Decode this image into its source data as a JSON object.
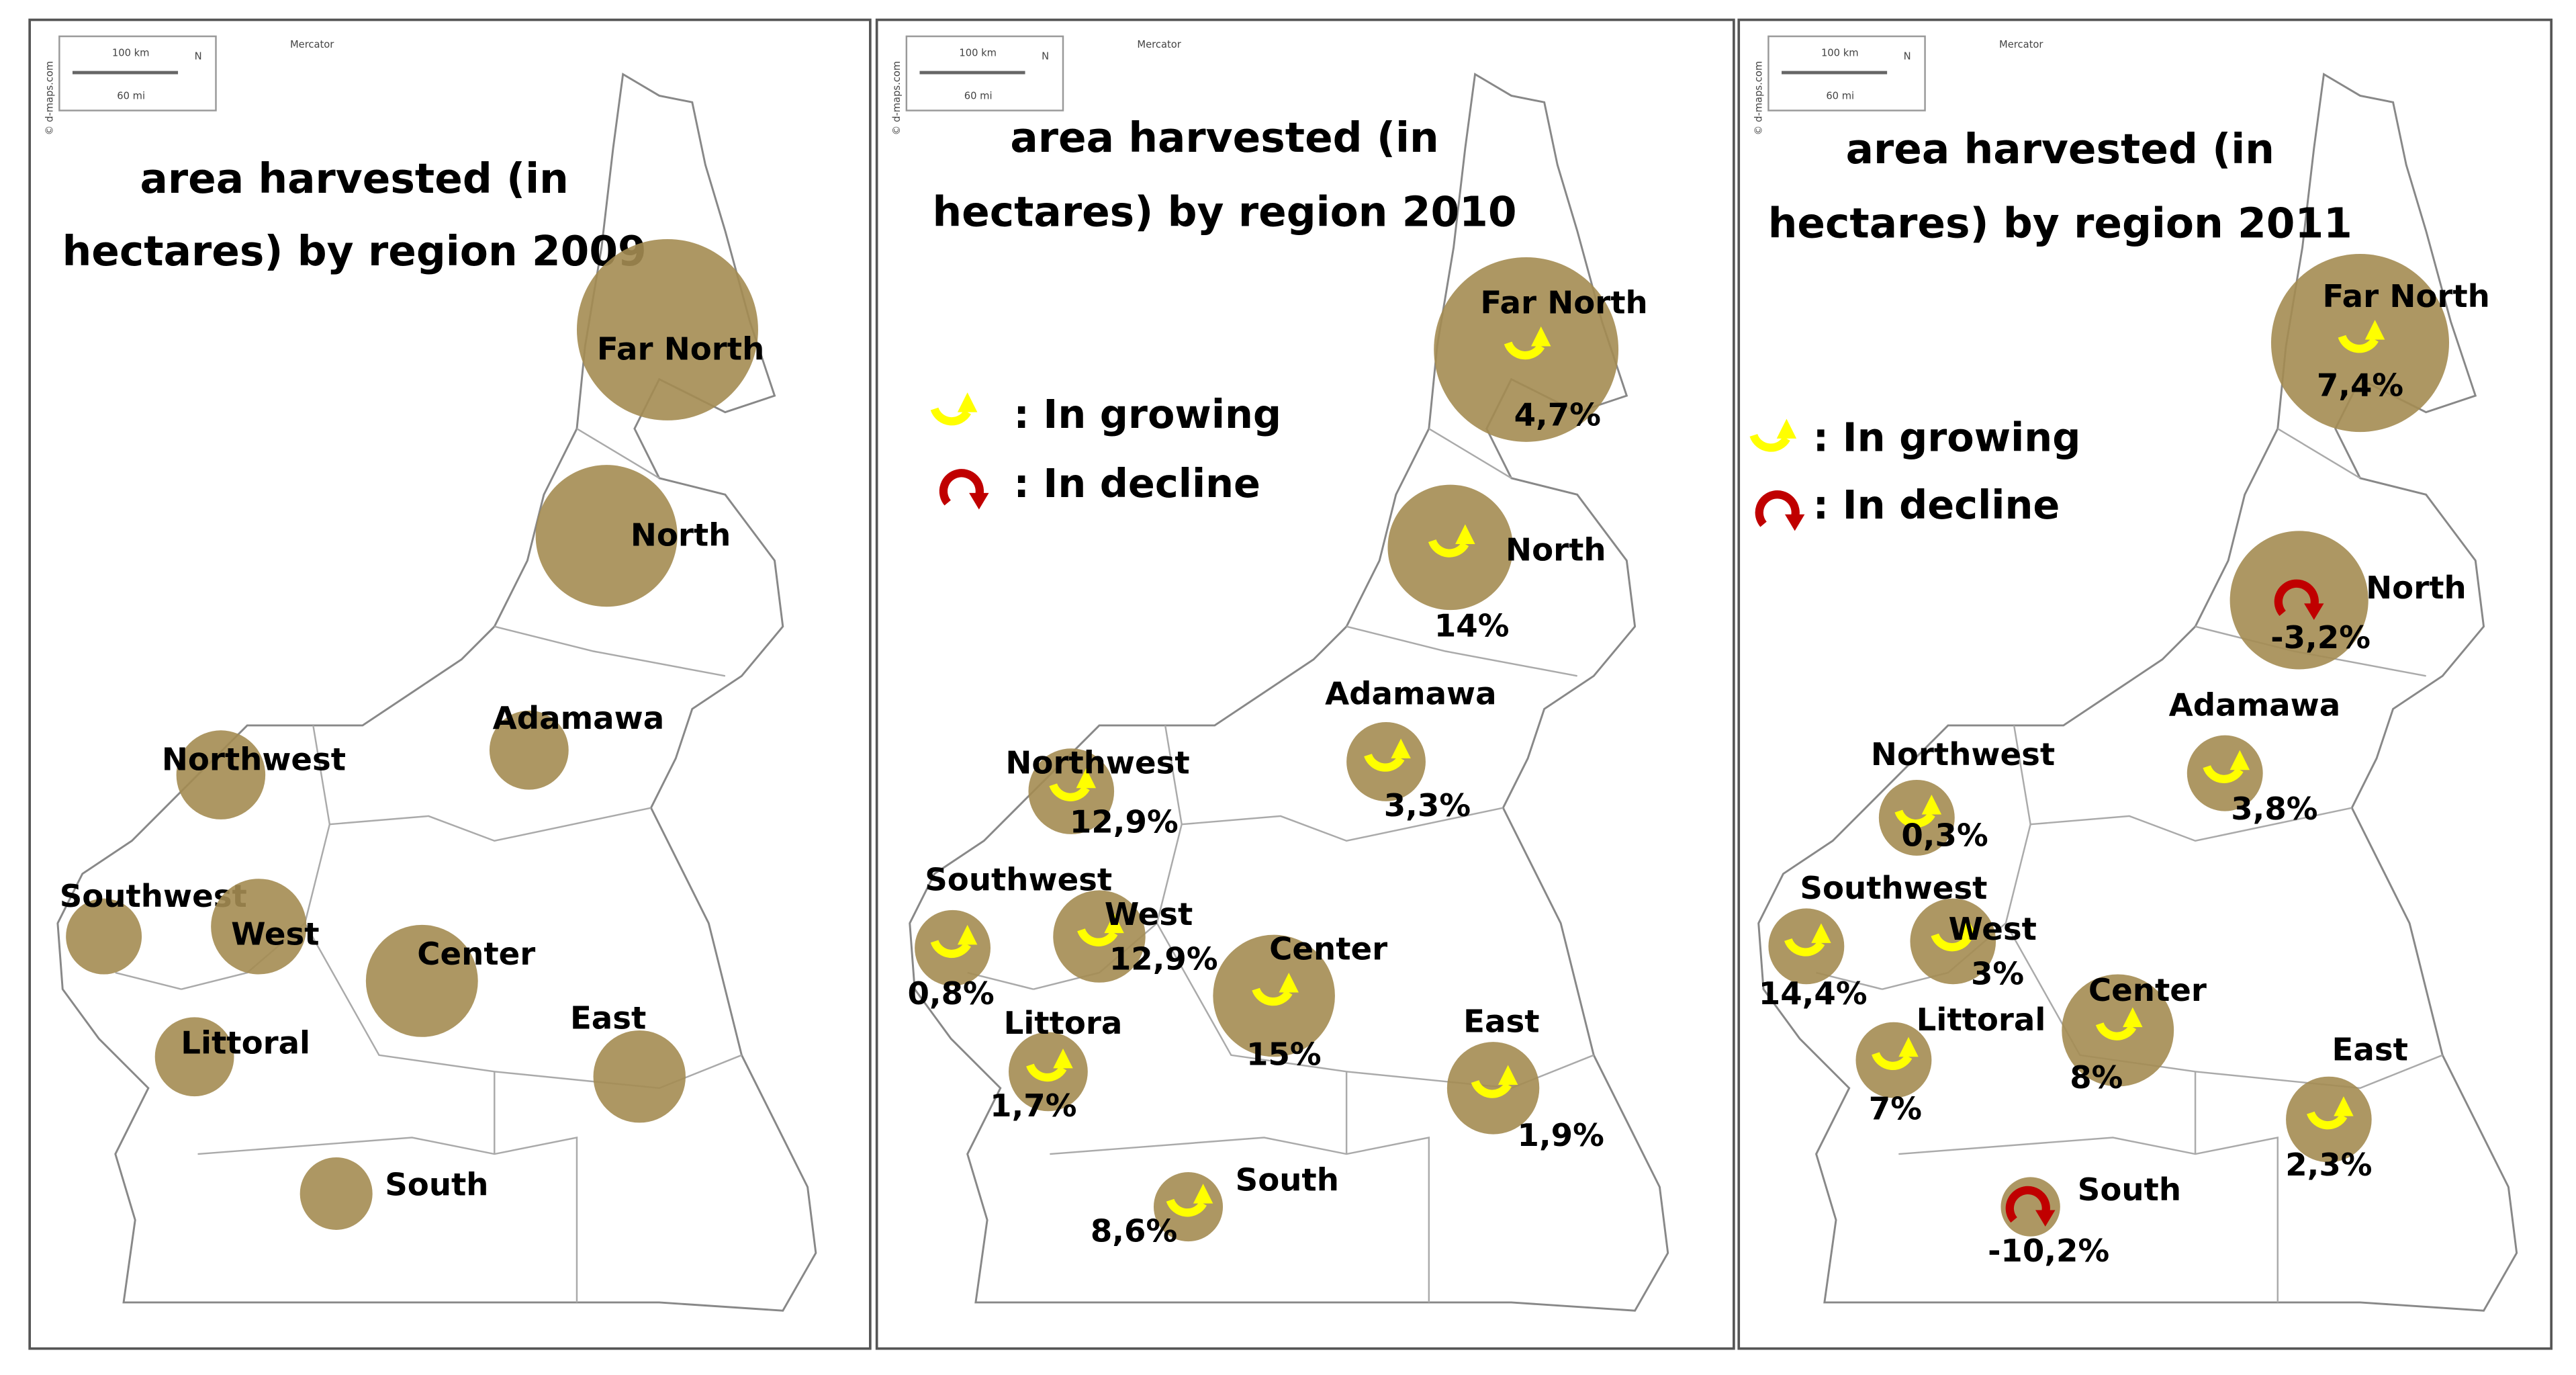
{
  "panels": [
    {
      "title": [
        "area harvested (in",
        "hectares) by region 2009"
      ],
      "regions": [
        {
          "name": "Far North"
        },
        {
          "name": "North"
        },
        {
          "name": "Adamawa"
        },
        {
          "name": "Northwest"
        },
        {
          "name": "Southwest"
        },
        {
          "name": "West"
        },
        {
          "name": "Center"
        },
        {
          "name": "East"
        },
        {
          "name": "Littoral"
        },
        {
          "name": "South"
        }
      ]
    },
    {
      "title": [
        "area harvested (in",
        "hectares) by region 2010"
      ],
      "legend": [
        ": In growing",
        ": In decline"
      ],
      "regions": [
        {
          "name": "Far North",
          "change": "4,7%"
        },
        {
          "name": "North",
          "change": "14%"
        },
        {
          "name": "Adamawa",
          "change": "3,3%"
        },
        {
          "name": "Northwest",
          "change": "12,9%"
        },
        {
          "name": "Southwest",
          "change": "0,8%"
        },
        {
          "name": "West",
          "change": "12,9%"
        },
        {
          "name": "Center",
          "change": "15%"
        },
        {
          "name": "East",
          "change": "1,9%"
        },
        {
          "name": "Littora",
          "change": "1,7%"
        },
        {
          "name": "South",
          "change": "8,6%"
        }
      ]
    },
    {
      "title": [
        "area harvested (in",
        "hectares) by region 2011"
      ],
      "legend": [
        ": In growing",
        ": In decline"
      ],
      "regions": [
        {
          "name": "Far North",
          "change": "7,4%"
        },
        {
          "name": "North",
          "change": "-3,2%"
        },
        {
          "name": "Adamawa",
          "change": "3,8%"
        },
        {
          "name": "Northwest",
          "change": "0,3%"
        },
        {
          "name": "Southwest",
          "change": "14,4%"
        },
        {
          "name": "West",
          "change": "3%"
        },
        {
          "name": "Center",
          "change": "8%"
        },
        {
          "name": "East",
          "change": "2,3%"
        },
        {
          "name": "Littoral",
          "change": "7%"
        },
        {
          "name": "South",
          "change": "-10,2%"
        }
      ]
    }
  ],
  "scale": {
    "km": "100 km",
    "mi": "60 mi",
    "north": "N",
    "projection": "Mercator",
    "credit": "© d-maps.com"
  }
}
